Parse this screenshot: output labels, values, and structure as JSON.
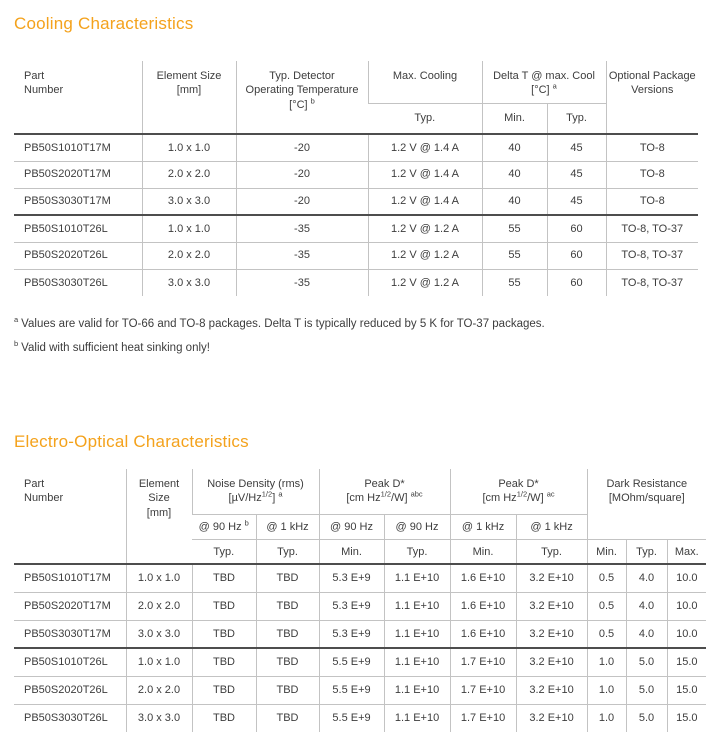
{
  "page": {
    "accent_color": "#f4a21c",
    "text_color": "#3d3d3d"
  },
  "cooling_section": {
    "title": "Cooling Characteristics",
    "table": {
      "headers": {
        "part_number": [
          "Part",
          "Number"
        ],
        "element_size": [
          "Element Size",
          "[mm]"
        ],
        "detector_temp": {
          "line1": "Typ. Detector",
          "line2": "Operating Temperature",
          "unit": [
            "[°C] ",
            {
              "sup": "b"
            }
          ]
        },
        "max_cooling": {
          "label": "Max. Cooling",
          "sub": "Typ."
        },
        "delta_t": {
          "label": "Delta T @ max. Cool",
          "unit": [
            "[°C] ",
            {
              "sup": "a"
            }
          ],
          "subs": [
            "Min.",
            "Typ."
          ]
        },
        "optional_package": [
          "Optional Package",
          "Versions"
        ]
      },
      "group_split_index": 3,
      "rows": [
        [
          "PB50S1010T17M",
          "1.0 x 1.0",
          "-20",
          "1.2 V @ 1.4 A",
          "40",
          "45",
          "TO-8"
        ],
        [
          "PB50S2020T17M",
          "2.0 x 2.0",
          "-20",
          "1.2 V @ 1.4 A",
          "40",
          "45",
          "TO-8"
        ],
        [
          "PB50S3030T17M",
          "3.0 x 3.0",
          "-20",
          "1.2 V @ 1.4 A",
          "40",
          "45",
          "TO-8"
        ],
        [
          "PB50S1010T26L",
          "1.0 x 1.0",
          "-35",
          "1.2 V @ 1.2 A",
          "55",
          "60",
          "TO-8, TO-37"
        ],
        [
          "PB50S2020T26L",
          "2.0 x 2.0",
          "-35",
          "1.2 V @ 1.2 A",
          "55",
          "60",
          "TO-8, TO-37"
        ],
        [
          "PB50S3030T26L",
          "3.0 x 3.0",
          "-35",
          "1.2 V @ 1.2 A",
          "55",
          "60",
          "TO-8, TO-37"
        ]
      ]
    },
    "footnotes": [
      {
        "marker": "a",
        "text": "Values are valid for TO-66 and TO-8 packages. Delta T is typically reduced by 5 K for TO-37 packages."
      },
      {
        "marker": "b",
        "text": "Valid with sufficient heat sinking only!"
      }
    ]
  },
  "electro_section": {
    "title": "Electro-Optical Characteristics",
    "table": {
      "headers": {
        "part_number": [
          "Part",
          "Number"
        ],
        "element_size": [
          "Element",
          "Size",
          "[mm]"
        ],
        "noise_density": {
          "label": "Noise Density (rms)",
          "unit": [
            "[µV/Hz",
            {
              "sup": "1/2"
            },
            "] ",
            {
              "sup": "a"
            }
          ],
          "freq1": [
            "@ 90 Hz ",
            {
              "sup": "b"
            }
          ],
          "freq2": [
            "@ 1 kHz"
          ],
          "stats": [
            "Typ.",
            "Typ."
          ]
        },
        "peak_d_90": {
          "label": "Peak D*",
          "unit": [
            "[cm Hz",
            {
              "sup": "1/2"
            },
            "/W] ",
            {
              "sup": "abc"
            }
          ],
          "freq1": [
            "@ 90 Hz"
          ],
          "freq2": [
            "@ 90 Hz"
          ],
          "stats": [
            "Min.",
            "Typ."
          ]
        },
        "peak_d_1k": {
          "label": "Peak D*",
          "unit": [
            "[cm Hz",
            {
              "sup": "1/2"
            },
            "/W] ",
            {
              "sup": "ac"
            }
          ],
          "freq1": [
            "@ 1 kHz"
          ],
          "freq2": [
            "@ 1 kHz"
          ],
          "stats": [
            "Min.",
            "Typ."
          ]
        },
        "dark_resistance": {
          "line1": "Dark Resistance",
          "line2": "[MOhm/square]",
          "stats": [
            "Min.",
            "Typ.",
            "Max."
          ]
        }
      },
      "group_split_index": 3,
      "rows": [
        [
          "PB50S1010T17M",
          "1.0 x 1.0",
          "TBD",
          "TBD",
          "5.3 E+9",
          "1.1 E+10",
          "1.6 E+10",
          "3.2 E+10",
          "0.5",
          "4.0",
          "10.0"
        ],
        [
          "PB50S2020T17M",
          "2.0 x 2.0",
          "TBD",
          "TBD",
          "5.3 E+9",
          "1.1 E+10",
          "1.6 E+10",
          "3.2 E+10",
          "0.5",
          "4.0",
          "10.0"
        ],
        [
          "PB50S3030T17M",
          "3.0 x 3.0",
          "TBD",
          "TBD",
          "5.3 E+9",
          "1.1 E+10",
          "1.6 E+10",
          "3.2 E+10",
          "0.5",
          "4.0",
          "10.0"
        ],
        [
          "PB50S1010T26L",
          "1.0 x 1.0",
          "TBD",
          "TBD",
          "5.5 E+9",
          "1.1 E+10",
          "1.7 E+10",
          "3.2 E+10",
          "1.0",
          "5.0",
          "15.0"
        ],
        [
          "PB50S2020T26L",
          "2.0 x 2.0",
          "TBD",
          "TBD",
          "5.5 E+9",
          "1.1 E+10",
          "1.7 E+10",
          "3.2 E+10",
          "1.0",
          "5.0",
          "15.0"
        ],
        [
          "PB50S3030T26L",
          "3.0 x 3.0",
          "TBD",
          "TBD",
          "5.5 E+9",
          "1.1 E+10",
          "1.7 E+10",
          "3.2 E+10",
          "1.0",
          "5.0",
          "15.0"
        ]
      ]
    }
  }
}
